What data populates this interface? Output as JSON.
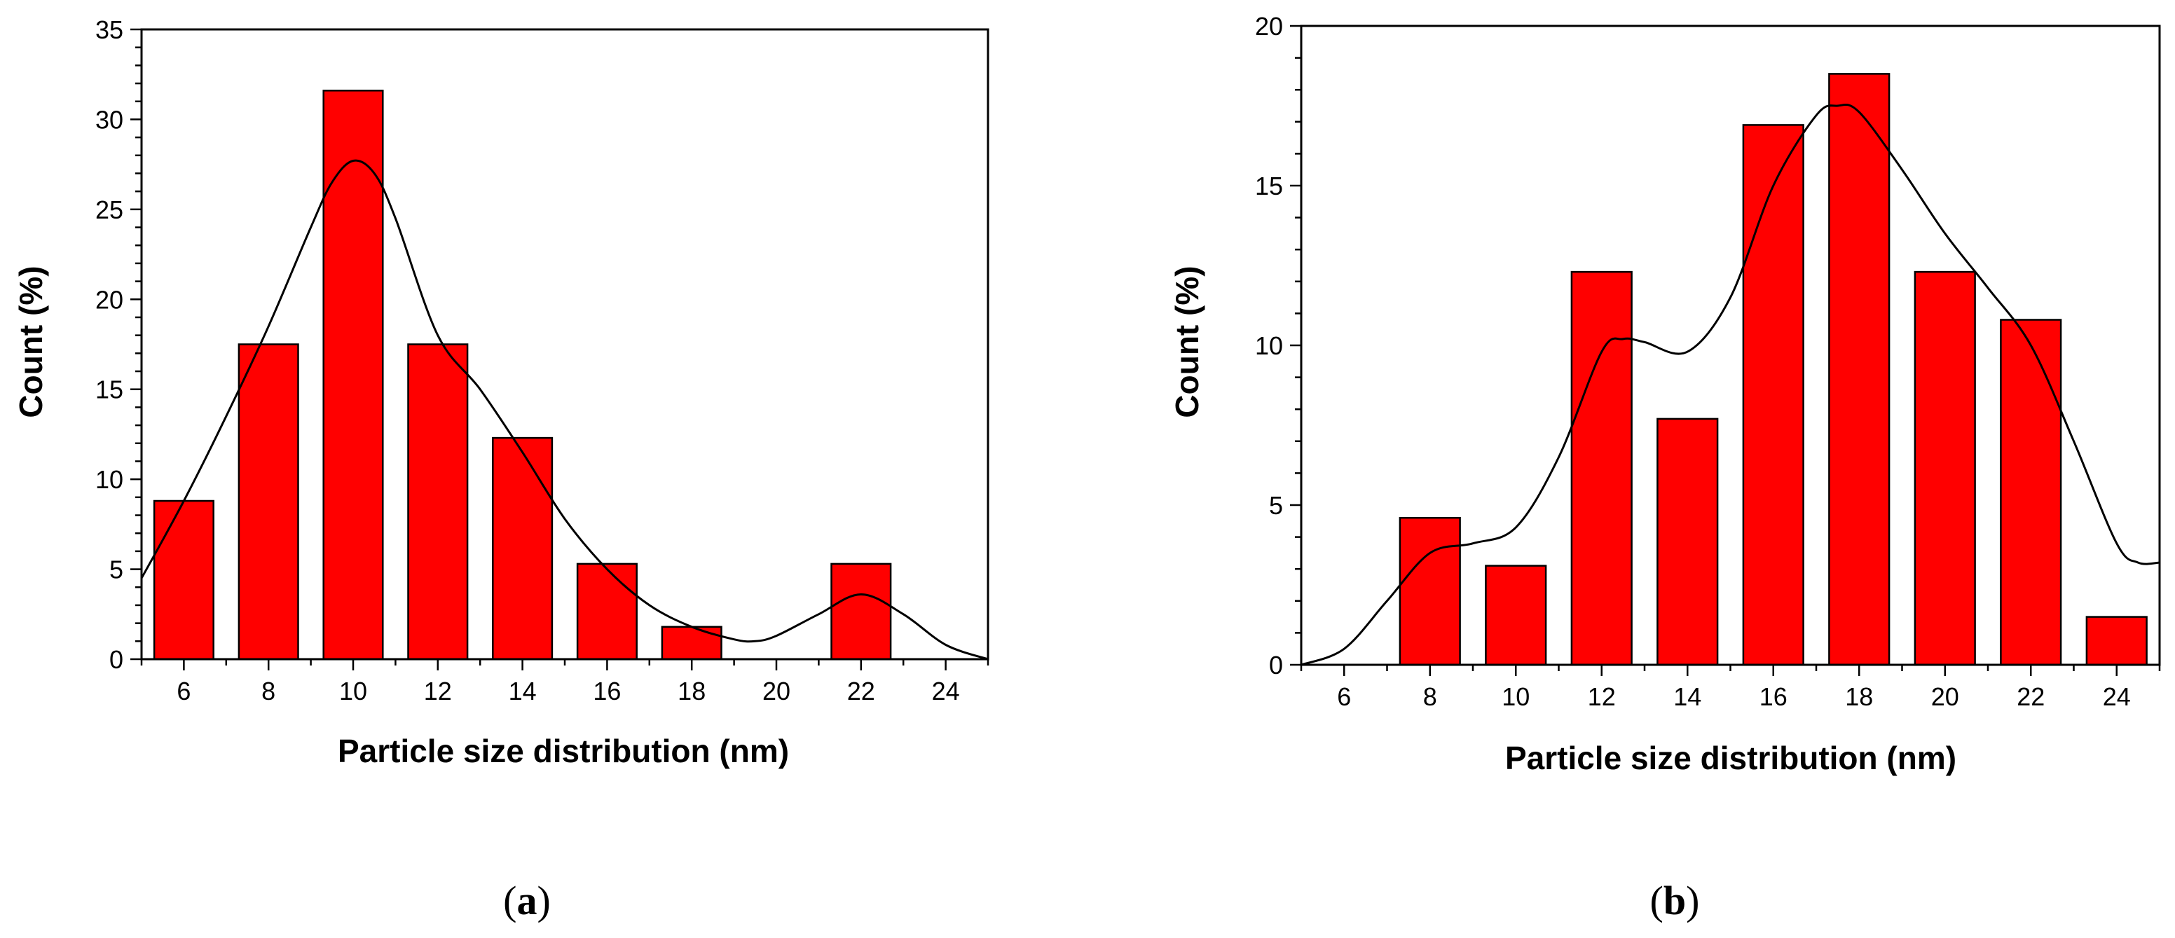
{
  "chart_data": [
    {
      "type": "bar",
      "panel_label": "a",
      "xlabel": "Particle size distribution (nm)",
      "ylabel": "Count (%)",
      "xlim": [
        5,
        25
      ],
      "ylim": [
        0,
        35
      ],
      "x_ticks": [
        "6",
        "8",
        "10",
        "12",
        "14",
        "16",
        "18",
        "20",
        "22",
        "24"
      ],
      "y_ticks": [
        "0",
        "5",
        "10",
        "15",
        "20",
        "25",
        "30",
        "35"
      ],
      "bar_color": "#ff0000",
      "bar_width": 1.4,
      "bars": [
        {
          "x": 6,
          "value": 8.8
        },
        {
          "x": 8,
          "value": 17.5
        },
        {
          "x": 10,
          "value": 31.6
        },
        {
          "x": 12,
          "value": 17.5
        },
        {
          "x": 14,
          "value": 12.3
        },
        {
          "x": 16,
          "value": 5.3
        },
        {
          "x": 18,
          "value": 1.8
        },
        {
          "x": 22,
          "value": 5.3
        }
      ],
      "fit_curve": [
        [
          5.0,
          4.5
        ],
        [
          6.0,
          8.8
        ],
        [
          7.0,
          13.5
        ],
        [
          8.0,
          18.5
        ],
        [
          9.0,
          24.0
        ],
        [
          9.5,
          26.5
        ],
        [
          10.0,
          27.7
        ],
        [
          10.5,
          27.0
        ],
        [
          11.0,
          24.5
        ],
        [
          12.0,
          18.0
        ],
        [
          13.0,
          15.0
        ],
        [
          14.0,
          11.5
        ],
        [
          15.0,
          7.8
        ],
        [
          16.0,
          5.0
        ],
        [
          17.0,
          3.0
        ],
        [
          18.0,
          1.8
        ],
        [
          19.0,
          1.1
        ],
        [
          19.5,
          1.0
        ],
        [
          20.0,
          1.3
        ],
        [
          21.0,
          2.5
        ],
        [
          22.0,
          3.6
        ],
        [
          23.0,
          2.5
        ],
        [
          24.0,
          0.8
        ],
        [
          25.0,
          0.0
        ]
      ]
    },
    {
      "type": "bar",
      "panel_label": "b",
      "xlabel": "Particle size distribution (nm)",
      "ylabel": "Count (%)",
      "xlim": [
        5,
        25
      ],
      "ylim": [
        0,
        20
      ],
      "x_ticks": [
        "6",
        "8",
        "10",
        "12",
        "14",
        "16",
        "18",
        "20",
        "22",
        "24"
      ],
      "y_ticks": [
        "0",
        "5",
        "10",
        "15",
        "20"
      ],
      "bar_color": "#ff0000",
      "bar_width": 1.4,
      "bars": [
        {
          "x": 8,
          "value": 4.6
        },
        {
          "x": 10,
          "value": 3.1
        },
        {
          "x": 12,
          "value": 12.3
        },
        {
          "x": 14,
          "value": 7.7
        },
        {
          "x": 16,
          "value": 16.9
        },
        {
          "x": 18,
          "value": 18.5
        },
        {
          "x": 20,
          "value": 12.3
        },
        {
          "x": 22,
          "value": 10.8
        },
        {
          "x": 24,
          "value": 1.5
        }
      ],
      "fit_curve": [
        [
          5.0,
          0.0
        ],
        [
          6.0,
          0.5
        ],
        [
          7.0,
          2.0
        ],
        [
          8.0,
          3.5
        ],
        [
          9.0,
          3.8
        ],
        [
          10.0,
          4.3
        ],
        [
          11.0,
          6.5
        ],
        [
          12.0,
          9.8
        ],
        [
          12.5,
          10.2
        ],
        [
          13.0,
          10.1
        ],
        [
          14.0,
          9.8
        ],
        [
          15.0,
          11.5
        ],
        [
          16.0,
          15.0
        ],
        [
          17.0,
          17.2
        ],
        [
          17.5,
          17.5
        ],
        [
          18.0,
          17.3
        ],
        [
          19.0,
          15.5
        ],
        [
          20.0,
          13.5
        ],
        [
          21.0,
          11.8
        ],
        [
          22.0,
          10.0
        ],
        [
          23.0,
          7.0
        ],
        [
          24.0,
          3.8
        ],
        [
          24.5,
          3.2
        ],
        [
          25.0,
          3.2
        ]
      ]
    }
  ],
  "captions": [
    {
      "open": "(",
      "letter": "a",
      "close": ")"
    },
    {
      "open": "(",
      "letter": "b",
      "close": ")"
    }
  ]
}
